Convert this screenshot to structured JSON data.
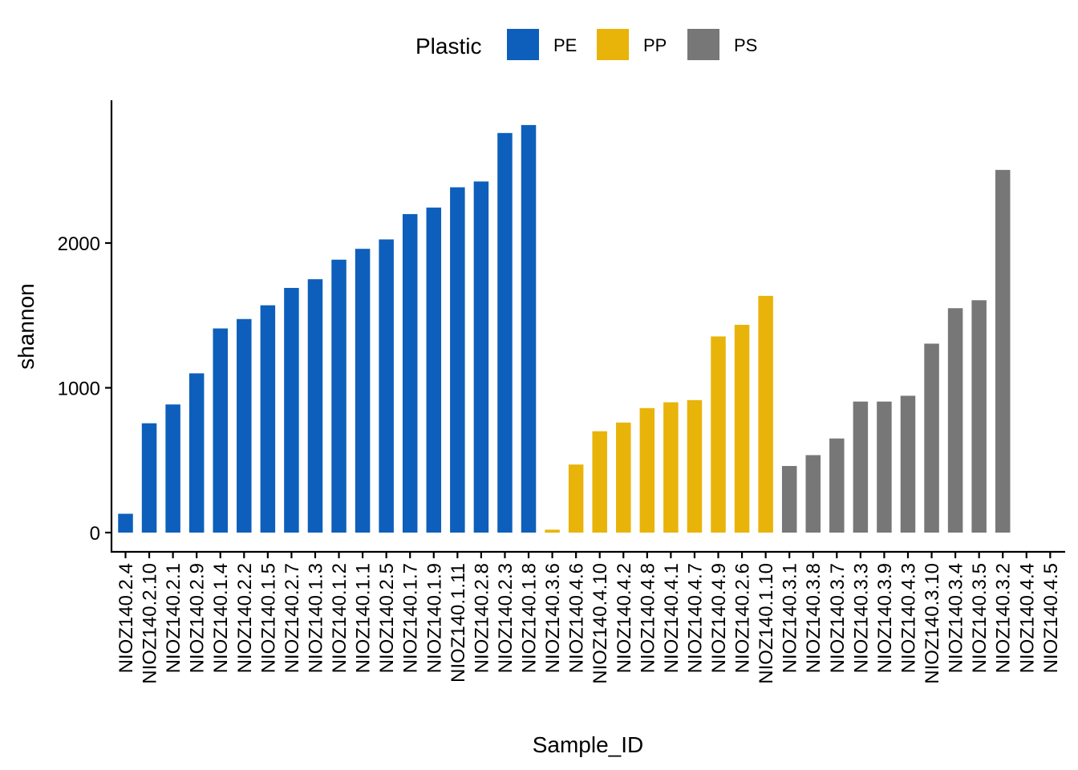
{
  "chart_data": {
    "type": "bar",
    "title": "",
    "xlabel": "Sample_ID",
    "ylabel": "shannon",
    "ylim": [
      -120,
      2900
    ],
    "yticks": [
      0,
      1000,
      2000
    ],
    "grid": false,
    "legend": {
      "title": "Plastic",
      "position": "top",
      "entries": [
        {
          "label": "PE",
          "color": "#0D5FBB"
        },
        {
          "label": "PP",
          "color": "#E8B40A"
        },
        {
          "label": "PS",
          "color": "#777777"
        }
      ]
    },
    "categories": [
      "NIOZ140.2.4",
      "NIOZ140.2.10",
      "NIOZ140.2.1",
      "NIOZ140.2.9",
      "NIOZ140.1.4",
      "NIOZ140.2.2",
      "NIOZ140.1.5",
      "NIOZ140.2.7",
      "NIOZ140.1.3",
      "NIOZ140.1.2",
      "NIOZ140.1.1",
      "NIOZ140.2.5",
      "NIOZ140.1.7",
      "NIOZ140.1.9",
      "NIOZ140.1.11",
      "NIOZ140.2.8",
      "NIOZ140.2.3",
      "NIOZ140.1.8",
      "NIOZ140.3.6",
      "NIOZ140.4.6",
      "NIOZ140.4.10",
      "NIOZ140.4.2",
      "NIOZ140.4.8",
      "NIOZ140.4.1",
      "NIOZ140.4.7",
      "NIOZ140.4.9",
      "NIOZ140.2.6",
      "NIOZ140.1.10",
      "NIOZ140.3.1",
      "NIOZ140.3.8",
      "NIOZ140.3.7",
      "NIOZ140.3.3",
      "NIOZ140.3.9",
      "NIOZ140.4.3",
      "NIOZ140.3.10",
      "NIOZ140.3.4",
      "NIOZ140.3.5",
      "NIOZ140.3.2",
      "NIOZ140.4.4",
      "NIOZ140.4.5"
    ],
    "values": [
      130,
      755,
      885,
      1100,
      1410,
      1475,
      1570,
      1690,
      1750,
      1885,
      1960,
      2025,
      2200,
      2245,
      2385,
      2425,
      2760,
      2815,
      20,
      470,
      700,
      760,
      860,
      900,
      915,
      1355,
      1435,
      1635,
      460,
      535,
      650,
      905,
      905,
      945,
      1305,
      1550,
      1605,
      2505,
      0,
      0
    ],
    "groups": [
      "PE",
      "PE",
      "PE",
      "PE",
      "PE",
      "PE",
      "PE",
      "PE",
      "PE",
      "PE",
      "PE",
      "PE",
      "PE",
      "PE",
      "PE",
      "PE",
      "PE",
      "PE",
      "PP",
      "PP",
      "PP",
      "PP",
      "PP",
      "PP",
      "PP",
      "PP",
      "PP",
      "PP",
      "PS",
      "PS",
      "PS",
      "PS",
      "PS",
      "PS",
      "PS",
      "PS",
      "PS",
      "PS",
      "PS",
      "PS"
    ]
  }
}
